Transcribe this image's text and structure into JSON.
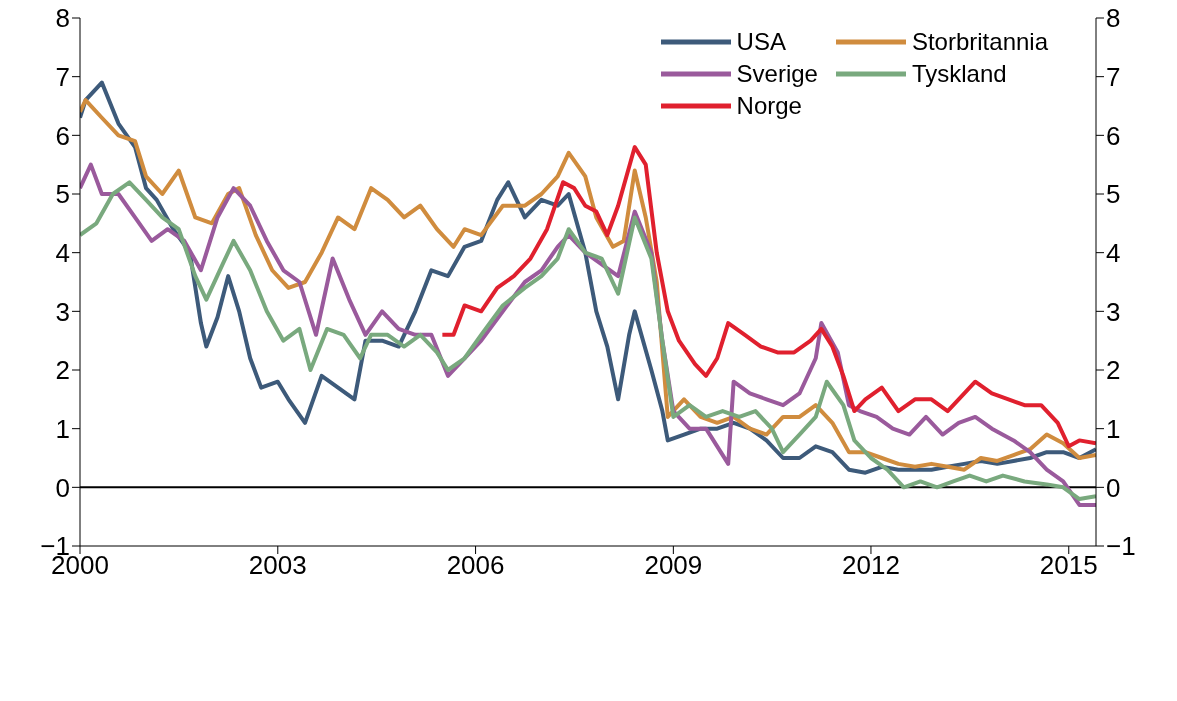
{
  "chart_data": {
    "type": "line",
    "xlim": [
      "2000-01",
      "2015-06"
    ],
    "xticks": [
      {
        "value": "2000-01",
        "label": "2000"
      },
      {
        "value": "2003-01",
        "label": "2003"
      },
      {
        "value": "2006-01",
        "label": "2006"
      },
      {
        "value": "2009-01",
        "label": "2009"
      },
      {
        "value": "2012-01",
        "label": "2012"
      },
      {
        "value": "2015-01",
        "label": "2015"
      }
    ],
    "ylim": [
      -1,
      8
    ],
    "yticks": [
      -1,
      0,
      1,
      2,
      3,
      4,
      5,
      6,
      7,
      8
    ],
    "y2lim": [
      -1,
      8
    ],
    "y2ticks": [
      -1,
      0,
      1,
      2,
      3,
      4,
      5,
      6,
      7,
      8
    ],
    "legend": "top right",
    "marker": "none",
    "line_style": "solid",
    "ref_lines": [
      {
        "axis": "y",
        "value": 0,
        "color": "#000000"
      }
    ],
    "series": [
      {
        "name": "USA",
        "color": "#3d5a7a",
        "x": [
          "2000-01",
          "2000-02",
          "2000-05",
          "2000-08",
          "2000-11",
          "2001-01",
          "2001-03",
          "2001-06",
          "2001-09",
          "2001-11",
          "2001-12",
          "2002-02",
          "2002-04",
          "2002-06",
          "2002-08",
          "2002-10",
          "2003-01",
          "2003-03",
          "2003-06",
          "2003-09",
          "2003-12",
          "2004-03",
          "2004-05",
          "2004-08",
          "2004-11",
          "2005-02",
          "2005-05",
          "2005-08",
          "2005-11",
          "2006-02",
          "2006-05",
          "2006-07",
          "2006-10",
          "2007-01",
          "2007-04",
          "2007-06",
          "2007-09",
          "2007-11",
          "2008-01",
          "2008-03",
          "2008-05",
          "2008-06",
          "2008-09",
          "2008-11",
          "2008-12",
          "2009-03",
          "2009-06",
          "2009-09",
          "2009-12",
          "2010-03",
          "2010-06",
          "2010-09",
          "2010-12",
          "2011-03",
          "2011-06",
          "2011-09",
          "2011-12",
          "2012-03",
          "2012-06",
          "2012-09",
          "2012-12",
          "2013-03",
          "2013-06",
          "2013-09",
          "2013-12",
          "2014-03",
          "2014-06",
          "2014-09",
          "2014-12",
          "2015-03",
          "2015-06"
        ],
        "values": [
          6.3,
          6.6,
          6.9,
          6.2,
          5.8,
          5.1,
          4.9,
          4.4,
          4.0,
          2.8,
          2.4,
          2.9,
          3.6,
          3.0,
          2.2,
          1.7,
          1.8,
          1.5,
          1.1,
          1.9,
          1.7,
          1.5,
          2.5,
          2.5,
          2.4,
          3.0,
          3.7,
          3.6,
          4.1,
          4.2,
          4.9,
          5.2,
          4.6,
          4.9,
          4.8,
          5.0,
          4.0,
          3.0,
          2.4,
          1.5,
          2.6,
          3.0,
          2.0,
          1.3,
          0.8,
          0.9,
          1.0,
          1.0,
          1.1,
          1.0,
          0.8,
          0.5,
          0.5,
          0.7,
          0.6,
          0.3,
          0.25,
          0.35,
          0.3,
          0.3,
          0.3,
          0.35,
          0.4,
          0.45,
          0.4,
          0.45,
          0.5,
          0.6,
          0.6,
          0.5,
          0.65
        ]
      },
      {
        "name": "Storbritannia",
        "color": "#d08c3e",
        "x": [
          "2000-01",
          "2000-02",
          "2000-05",
          "2000-08",
          "2000-11",
          "2001-01",
          "2001-04",
          "2001-07",
          "2001-10",
          "2002-01",
          "2002-04",
          "2002-06",
          "2002-09",
          "2002-12",
          "2003-03",
          "2003-06",
          "2003-09",
          "2003-12",
          "2004-03",
          "2004-06",
          "2004-09",
          "2004-12",
          "2005-03",
          "2005-06",
          "2005-09",
          "2005-11",
          "2006-02",
          "2006-06",
          "2006-10",
          "2007-01",
          "2007-04",
          "2007-06",
          "2007-09",
          "2007-11",
          "2008-02",
          "2008-04",
          "2008-06",
          "2008-08",
          "2008-10",
          "2008-12",
          "2009-03",
          "2009-06",
          "2009-09",
          "2009-12",
          "2010-03",
          "2010-06",
          "2010-09",
          "2010-12",
          "2011-03",
          "2011-06",
          "2011-09",
          "2011-12",
          "2012-03",
          "2012-06",
          "2012-09",
          "2012-12",
          "2013-03",
          "2013-06",
          "2013-09",
          "2013-12",
          "2014-03",
          "2014-06",
          "2014-09",
          "2014-12",
          "2015-03",
          "2015-06"
        ],
        "values": [
          6.4,
          6.6,
          6.3,
          6.0,
          5.9,
          5.3,
          5.0,
          5.4,
          4.6,
          4.5,
          5.0,
          5.1,
          4.3,
          3.7,
          3.4,
          3.5,
          4.0,
          4.6,
          4.4,
          5.1,
          4.9,
          4.6,
          4.8,
          4.4,
          4.1,
          4.4,
          4.3,
          4.8,
          4.8,
          5.0,
          5.3,
          5.7,
          5.3,
          4.6,
          4.1,
          4.2,
          5.4,
          4.6,
          3.5,
          1.2,
          1.5,
          1.2,
          1.1,
          1.2,
          1.0,
          0.9,
          1.2,
          1.2,
          1.4,
          1.1,
          0.6,
          0.6,
          0.5,
          0.4,
          0.35,
          0.4,
          0.35,
          0.3,
          0.5,
          0.45,
          0.55,
          0.65,
          0.9,
          0.75,
          0.5,
          0.55
        ]
      },
      {
        "name": "Sverige",
        "color": "#9a5a9c",
        "x": [
          "2000-01",
          "2000-03",
          "2000-05",
          "2000-08",
          "2000-11",
          "2001-02",
          "2001-05",
          "2001-08",
          "2001-11",
          "2002-02",
          "2002-05",
          "2002-08",
          "2002-11",
          "2003-02",
          "2003-05",
          "2003-08",
          "2003-11",
          "2004-02",
          "2004-05",
          "2004-08",
          "2004-11",
          "2005-02",
          "2005-05",
          "2005-08",
          "2005-11",
          "2006-02",
          "2006-06",
          "2006-10",
          "2007-01",
          "2007-04",
          "2007-06",
          "2007-09",
          "2007-12",
          "2008-03",
          "2008-06",
          "2008-09",
          "2008-11",
          "2009-01",
          "2009-04",
          "2009-07",
          "2009-11",
          "2009-12",
          "2010-03",
          "2010-06",
          "2010-09",
          "2010-12",
          "2011-03",
          "2011-04",
          "2011-07",
          "2011-09",
          "2011-11",
          "2012-02",
          "2012-05",
          "2012-08",
          "2012-11",
          "2013-02",
          "2013-05",
          "2013-08",
          "2013-11",
          "2014-03",
          "2014-06",
          "2014-09",
          "2014-12",
          "2015-03",
          "2015-06"
        ],
        "values": [
          5.1,
          5.5,
          5.0,
          5.0,
          4.6,
          4.2,
          4.4,
          4.2,
          3.7,
          4.6,
          5.1,
          4.8,
          4.2,
          3.7,
          3.5,
          2.6,
          3.9,
          3.2,
          2.6,
          3.0,
          2.7,
          2.6,
          2.6,
          1.9,
          2.2,
          2.5,
          3.0,
          3.5,
          3.7,
          4.1,
          4.3,
          4.0,
          3.8,
          3.6,
          4.7,
          4.0,
          2.5,
          1.3,
          1.0,
          1.0,
          0.4,
          1.8,
          1.6,
          1.5,
          1.4,
          1.6,
          2.2,
          2.8,
          2.3,
          1.4,
          1.3,
          1.2,
          1.0,
          0.9,
          1.2,
          0.9,
          1.1,
          1.2,
          1.0,
          0.8,
          0.6,
          0.3,
          0.1,
          -0.3,
          -0.3
        ]
      },
      {
        "name": "Tyskland",
        "color": "#79a97e",
        "x": [
          "2000-01",
          "2000-04",
          "2000-07",
          "2000-10",
          "2001-01",
          "2001-04",
          "2001-07",
          "2001-10",
          "2001-12",
          "2002-03",
          "2002-05",
          "2002-08",
          "2002-11",
          "2003-02",
          "2003-05",
          "2003-07",
          "2003-10",
          "2004-01",
          "2004-04",
          "2004-06",
          "2004-09",
          "2004-12",
          "2005-03",
          "2005-06",
          "2005-08",
          "2005-11",
          "2006-02",
          "2006-06",
          "2006-10",
          "2007-01",
          "2007-04",
          "2007-06",
          "2007-09",
          "2007-12",
          "2008-03",
          "2008-06",
          "2008-09",
          "2008-11",
          "2009-01",
          "2009-04",
          "2009-07",
          "2009-10",
          "2010-01",
          "2010-04",
          "2010-07",
          "2010-09",
          "2010-12",
          "2011-03",
          "2011-05",
          "2011-08",
          "2011-10",
          "2012-01",
          "2012-04",
          "2012-07",
          "2012-10",
          "2013-01",
          "2013-04",
          "2013-07",
          "2013-10",
          "2014-01",
          "2014-05",
          "2014-09",
          "2014-12",
          "2015-03",
          "2015-06"
        ],
        "values": [
          4.3,
          4.5,
          5.0,
          5.2,
          4.9,
          4.6,
          4.4,
          3.6,
          3.2,
          3.8,
          4.2,
          3.7,
          3.0,
          2.5,
          2.7,
          2.0,
          2.7,
          2.6,
          2.2,
          2.6,
          2.6,
          2.4,
          2.6,
          2.3,
          2.0,
          2.2,
          2.6,
          3.1,
          3.4,
          3.6,
          3.9,
          4.4,
          4.0,
          3.9,
          3.3,
          4.6,
          3.9,
          2.5,
          1.2,
          1.4,
          1.2,
          1.3,
          1.2,
          1.3,
          1.0,
          0.6,
          0.9,
          1.2,
          1.8,
          1.4,
          0.8,
          0.5,
          0.3,
          0.0,
          0.1,
          0.0,
          0.1,
          0.2,
          0.1,
          0.2,
          0.1,
          0.05,
          0.0,
          -0.2,
          -0.15
        ]
      },
      {
        "name": "Norge",
        "color": "#e0202e",
        "x": [
          "2005-07",
          "2005-09",
          "2005-11",
          "2006-02",
          "2006-05",
          "2006-08",
          "2006-11",
          "2007-02",
          "2007-05",
          "2007-07",
          "2007-09",
          "2007-11",
          "2008-01",
          "2008-03",
          "2008-06",
          "2008-08",
          "2008-10",
          "2008-12",
          "2009-02",
          "2009-05",
          "2009-07",
          "2009-09",
          "2009-11",
          "2010-02",
          "2010-05",
          "2010-08",
          "2010-11",
          "2011-02",
          "2011-04",
          "2011-06",
          "2011-08",
          "2011-10",
          "2011-12",
          "2012-03",
          "2012-06",
          "2012-09",
          "2012-12",
          "2013-03",
          "2013-05",
          "2013-08",
          "2013-11",
          "2014-02",
          "2014-05",
          "2014-08",
          "2014-11",
          "2015-01",
          "2015-03",
          "2015-06"
        ],
        "values": [
          2.6,
          2.6,
          3.1,
          3.0,
          3.4,
          3.6,
          3.9,
          4.4,
          5.2,
          5.1,
          4.8,
          4.7,
          4.3,
          4.8,
          5.8,
          5.5,
          4.0,
          3.0,
          2.5,
          2.1,
          1.9,
          2.2,
          2.8,
          2.6,
          2.4,
          2.3,
          2.3,
          2.5,
          2.7,
          2.4,
          1.9,
          1.3,
          1.5,
          1.7,
          1.3,
          1.5,
          1.5,
          1.3,
          1.5,
          1.8,
          1.6,
          1.5,
          1.4,
          1.4,
          1.1,
          0.7,
          0.8,
          0.75
        ]
      }
    ]
  }
}
